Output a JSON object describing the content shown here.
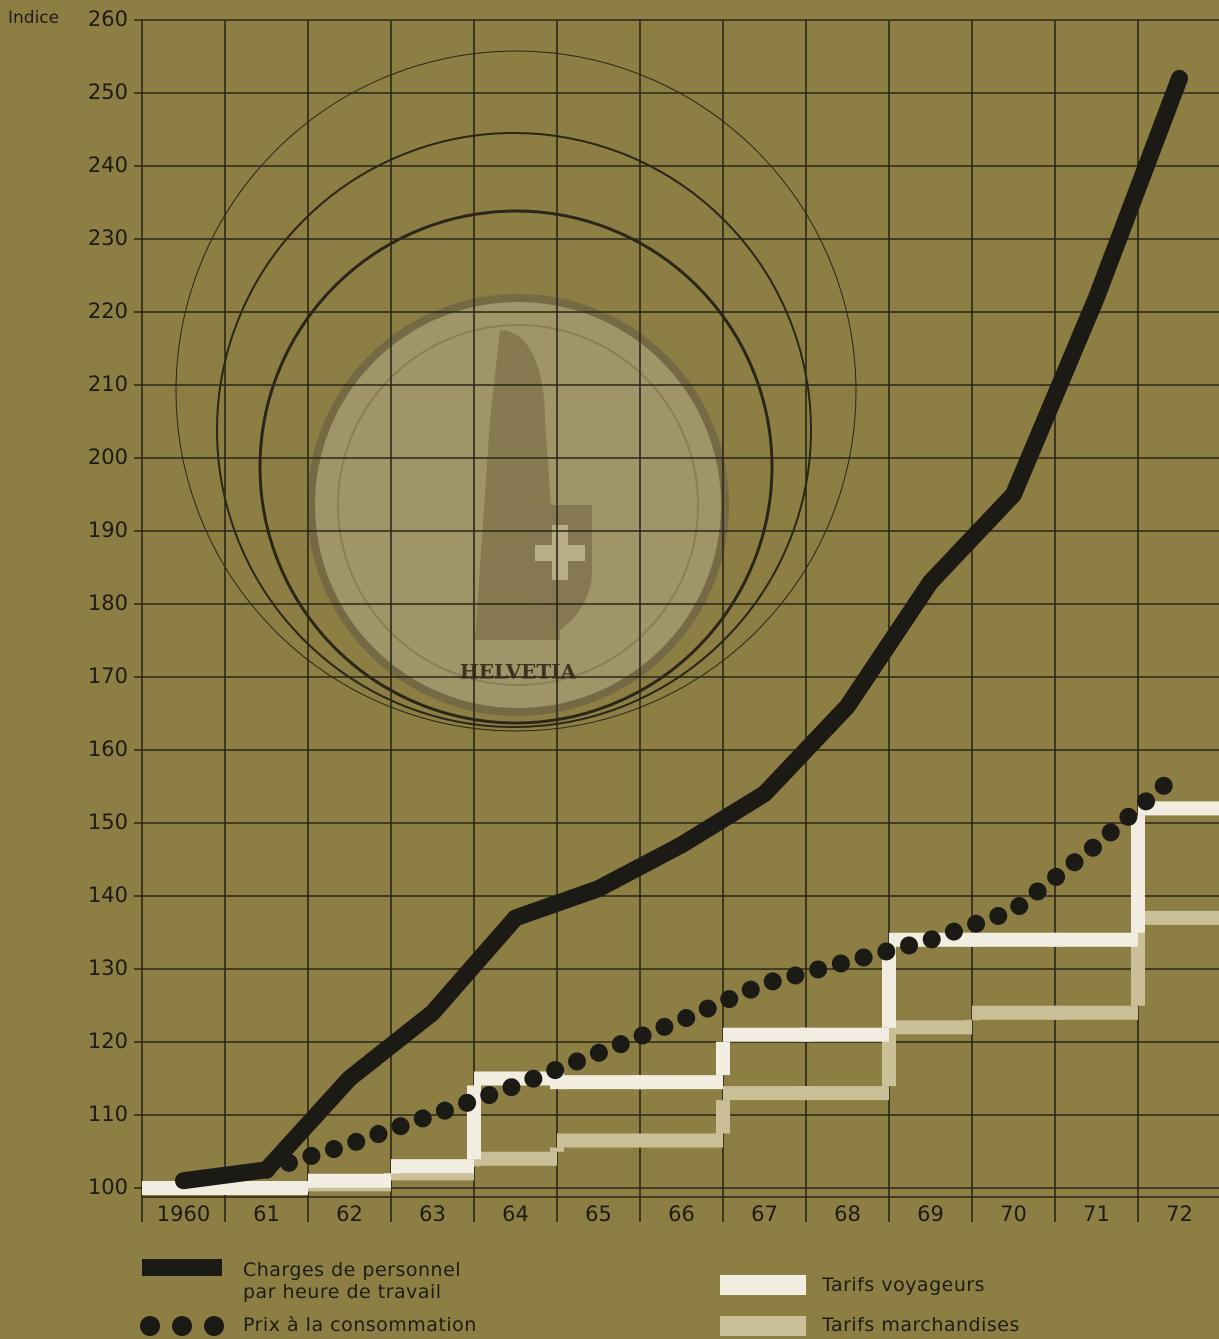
{
  "chart_data": {
    "type": "line",
    "ylabel": "Indice",
    "categories": [
      "1960",
      "61",
      "62",
      "63",
      "64",
      "65",
      "66",
      "67",
      "68",
      "69",
      "70",
      "71",
      "72"
    ],
    "series": [
      {
        "name": "Charges de personnel par heure de travail",
        "color": "#1c1a14",
        "style": "line",
        "values": [
          101,
          102.5,
          115,
          124,
          137,
          141,
          147,
          154,
          166,
          183,
          195,
          222,
          252
        ]
      },
      {
        "name": "Prix à la consommation",
        "color": "#1c1a14",
        "style": "dots",
        "values": [
          null,
          102.5,
          106,
          110,
          114,
          118.5,
          123,
          128,
          131,
          134,
          138,
          147,
          157
        ]
      },
      {
        "name": "Tarifs voyageurs",
        "color": "#f1ede0",
        "style": "step",
        "values": [
          100,
          100,
          101,
          103,
          115,
          114.5,
          114.5,
          121,
          121,
          134,
          134,
          134,
          152
        ]
      },
      {
        "name": "Tarifs marchandises",
        "color": "#cbbf98",
        "style": "step",
        "values": [
          100,
          100,
          100.5,
          102,
          104,
          106.5,
          106.5,
          113,
          113,
          122,
          124,
          124,
          137
        ]
      }
    ],
    "ylim": [
      100,
      260
    ],
    "yticks": [
      100,
      110,
      120,
      130,
      140,
      150,
      160,
      170,
      180,
      190,
      200,
      210,
      220,
      230,
      240,
      250,
      260
    ],
    "grid": true,
    "coin_text": "HELVETIA"
  }
}
